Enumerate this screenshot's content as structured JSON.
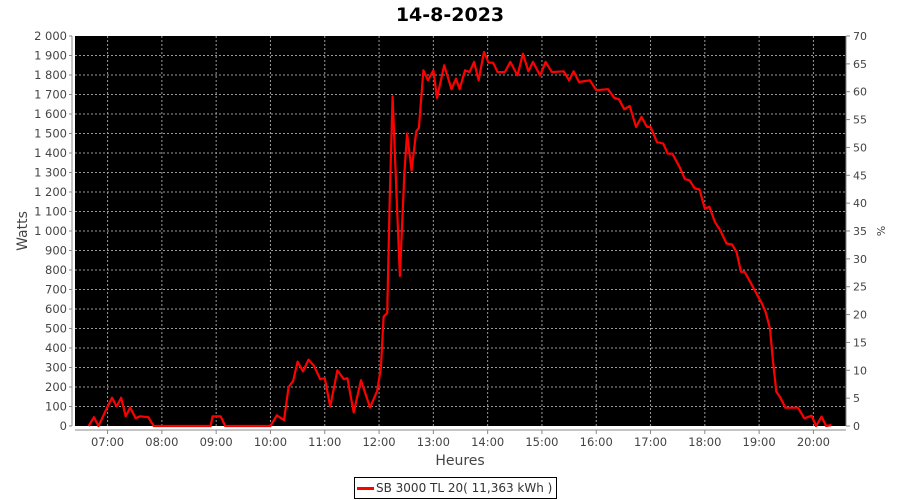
{
  "chart_data": {
    "type": "line",
    "title": "14-8-2023",
    "xlabel": "Heures",
    "ylabel": "Watts",
    "y2label": "%",
    "xlim": [
      "06:24",
      "20:36"
    ],
    "ylim": [
      0,
      2000
    ],
    "y2lim": [
      0,
      70
    ],
    "grid": true,
    "background": "#000000",
    "legend_position": "bottom",
    "x_ticks": [
      "07:00",
      "08:00",
      "09:00",
      "10:00",
      "11:00",
      "12:00",
      "13:00",
      "14:00",
      "15:00",
      "16:00",
      "17:00",
      "18:00",
      "19:00",
      "20:00"
    ],
    "y_ticks": [
      "0",
      "100",
      "200",
      "300",
      "400",
      "500",
      "600",
      "700",
      "800",
      "900",
      "1 000",
      "1 100",
      "1 200",
      "1 300",
      "1 400",
      "1 500",
      "1 600",
      "1 700",
      "1 800",
      "1 900",
      "2 000"
    ],
    "y2_ticks": [
      "0",
      "5",
      "10",
      "15",
      "20",
      "25",
      "30",
      "35",
      "40",
      "45",
      "50",
      "55",
      "60",
      "65",
      "70"
    ],
    "series": [
      {
        "name": "SB 3000 TL 20( 11,363 kWh )",
        "color": "#ff0000",
        "points": [
          [
            "06:39",
            0
          ],
          [
            "06:45",
            45
          ],
          [
            "06:50",
            0
          ],
          [
            "06:56",
            60
          ],
          [
            "07:00",
            100
          ],
          [
            "07:05",
            145
          ],
          [
            "07:10",
            100
          ],
          [
            "07:15",
            145
          ],
          [
            "07:20",
            50
          ],
          [
            "07:25",
            95
          ],
          [
            "07:31",
            40
          ],
          [
            "07:36",
            50
          ],
          [
            "07:45",
            45
          ],
          [
            "07:51",
            0
          ],
          [
            "08:54",
            0
          ],
          [
            "08:56",
            50
          ],
          [
            "09:05",
            50
          ],
          [
            "09:10",
            0
          ],
          [
            "10:00",
            0
          ],
          [
            "10:07",
            55
          ],
          [
            "10:15",
            30
          ],
          [
            "10:20",
            200
          ],
          [
            "10:25",
            230
          ],
          [
            "10:30",
            330
          ],
          [
            "10:36",
            280
          ],
          [
            "10:42",
            340
          ],
          [
            "10:48",
            310
          ],
          [
            "10:55",
            240
          ],
          [
            "11:00",
            245
          ],
          [
            "11:06",
            100
          ],
          [
            "11:14",
            285
          ],
          [
            "11:21",
            240
          ],
          [
            "11:25",
            245
          ],
          [
            "11:32",
            70
          ],
          [
            "11:40",
            235
          ],
          [
            "11:50",
            95
          ],
          [
            "11:58",
            180
          ],
          [
            "12:02",
            300
          ],
          [
            "12:05",
            560
          ],
          [
            "12:09",
            580
          ],
          [
            "12:12",
            1200
          ],
          [
            "12:15",
            1690
          ],
          [
            "12:20",
            1100
          ],
          [
            "12:23",
            770
          ],
          [
            "12:28",
            1300
          ],
          [
            "12:31",
            1500
          ],
          [
            "12:36",
            1310
          ],
          [
            "12:41",
            1510
          ],
          [
            "12:44",
            1530
          ],
          [
            "12:49",
            1824
          ],
          [
            "12:54",
            1773
          ],
          [
            "13:00",
            1824
          ],
          [
            "13:04",
            1682
          ],
          [
            "13:12",
            1850
          ],
          [
            "13:20",
            1727
          ],
          [
            "13:25",
            1781
          ],
          [
            "13:29",
            1727
          ],
          [
            "13:35",
            1824
          ],
          [
            "13:40",
            1815
          ],
          [
            "13:45",
            1867
          ],
          [
            "13:50",
            1773
          ],
          [
            "13:56",
            1918
          ],
          [
            "14:01",
            1863
          ],
          [
            "14:06",
            1863
          ],
          [
            "14:11",
            1815
          ],
          [
            "14:19",
            1815
          ],
          [
            "14:25",
            1867
          ],
          [
            "14:33",
            1798
          ],
          [
            "14:39",
            1909
          ],
          [
            "14:45",
            1819
          ],
          [
            "14:50",
            1867
          ],
          [
            "14:58",
            1798
          ],
          [
            "15:04",
            1867
          ],
          [
            "15:11",
            1815
          ],
          [
            "15:24",
            1819
          ],
          [
            "15:30",
            1773
          ],
          [
            "15:35",
            1819
          ],
          [
            "15:41",
            1764
          ],
          [
            "15:53",
            1773
          ],
          [
            "16:00",
            1722
          ],
          [
            "16:13",
            1727
          ],
          [
            "16:20",
            1682
          ],
          [
            "16:25",
            1676
          ],
          [
            "16:31",
            1624
          ],
          [
            "16:37",
            1641
          ],
          [
            "16:44",
            1534
          ],
          [
            "16:50",
            1585
          ],
          [
            "16:56",
            1534
          ],
          [
            "17:00",
            1534
          ],
          [
            "17:07",
            1457
          ],
          [
            "17:14",
            1448
          ],
          [
            "17:19",
            1397
          ],
          [
            "17:24",
            1397
          ],
          [
            "17:32",
            1329
          ],
          [
            "17:38",
            1266
          ],
          [
            "17:43",
            1260
          ],
          [
            "17:49",
            1218
          ],
          [
            "17:54",
            1214
          ],
          [
            "18:00",
            1115
          ],
          [
            "18:05",
            1124
          ],
          [
            "18:11",
            1047
          ],
          [
            "18:17",
            1004
          ],
          [
            "18:24",
            936
          ],
          [
            "18:30",
            931
          ],
          [
            "18:35",
            893
          ],
          [
            "18:40",
            791
          ],
          [
            "18:44",
            791
          ],
          [
            "18:50",
            740
          ],
          [
            "18:57",
            680
          ],
          [
            "19:03",
            629
          ],
          [
            "19:07",
            586
          ],
          [
            "19:12",
            500
          ],
          [
            "19:15",
            347
          ],
          [
            "19:19",
            176
          ],
          [
            "19:23",
            150
          ],
          [
            "19:29",
            94
          ],
          [
            "19:43",
            94
          ],
          [
            "19:50",
            39
          ],
          [
            "19:58",
            53
          ],
          [
            "20:03",
            0
          ],
          [
            "20:09",
            48
          ],
          [
            "20:14",
            0
          ],
          [
            "20:20",
            5
          ]
        ]
      }
    ]
  }
}
